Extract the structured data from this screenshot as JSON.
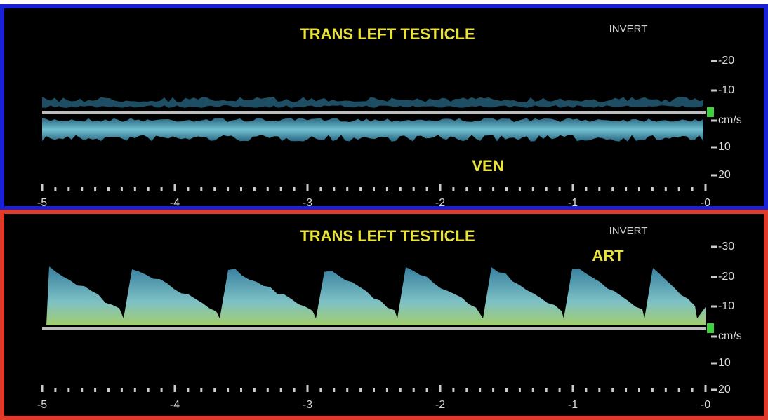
{
  "panels": [
    {
      "title": "TRANS LEFT TESTICLE",
      "mode": "INVERT",
      "label": "VEN",
      "scale": [
        "-20",
        "-10",
        "cm/s",
        "10",
        "20"
      ],
      "time": [
        "-5",
        "-4",
        "-3",
        "-2",
        "-1",
        "-0"
      ]
    },
    {
      "title": "TRANS LEFT TESTICLE",
      "mode": "INVERT",
      "label": "ART",
      "scale": [
        "-30",
        "-20",
        "-10",
        "cm/s",
        "10",
        "20"
      ],
      "time": [
        "-5",
        "-4",
        "-3",
        "-2",
        "-1",
        "-0"
      ]
    }
  ]
}
